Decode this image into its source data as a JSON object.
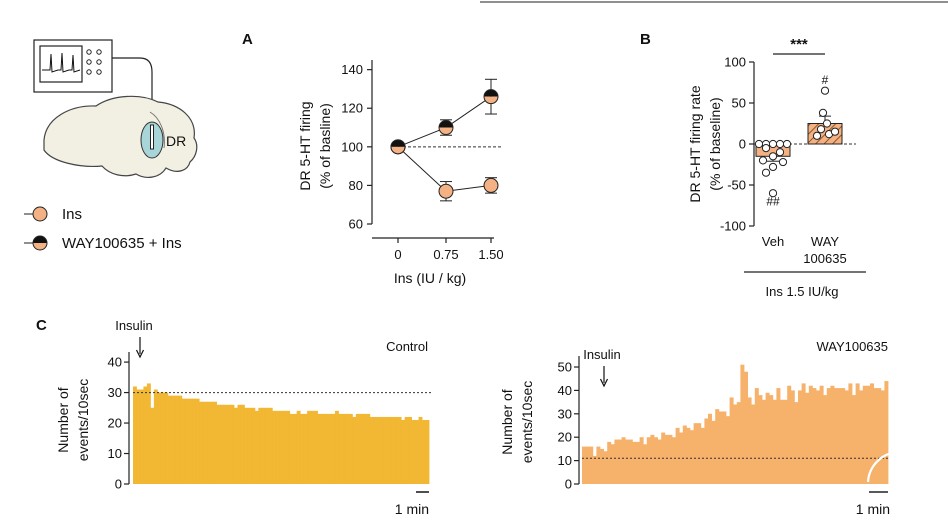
{
  "panels": {
    "a": "A",
    "b": "B",
    "c": "C"
  },
  "schematic": {
    "region_label": "DR"
  },
  "legend": {
    "ins": "Ins",
    "way": "WAY100635 + Ins"
  },
  "colors": {
    "ins": "#F4B183",
    "way_top": "#111111",
    "way_bottom": "#F4B183",
    "bar_control": "#F2B733",
    "bar_way": "#F6B26B"
  },
  "chart_a": {
    "type": "line",
    "ylabel_line1": "DR 5-HT firing",
    "ylabel_line2": "(% of basline)",
    "xlabel": "Ins (IU / kg)",
    "x_ticks": [
      "0",
      "0.75",
      "1.50"
    ],
    "y_ticks": [
      "60",
      "80",
      "100",
      "120",
      "140"
    ],
    "ylim": [
      60,
      145
    ],
    "reference_line": 100,
    "series": [
      {
        "name": "Ins",
        "values": [
          100,
          77,
          80
        ],
        "errors": [
          0,
          5,
          4
        ]
      },
      {
        "name": "WAY100635 + Ins",
        "values": [
          100,
          110,
          126
        ],
        "errors": [
          0,
          4,
          9
        ]
      }
    ]
  },
  "chart_b": {
    "type": "bar",
    "ylabel_line1": "DR 5-HT firing rate",
    "ylabel_line2": "(% of baseline)",
    "categories": [
      "Veh",
      "WAY"
    ],
    "category_line2": [
      "",
      "100635"
    ],
    "group_label": "Ins 1.5 IU/kg",
    "y_ticks": [
      "-100",
      "-50",
      "0",
      "50",
      "100"
    ],
    "ylim": [
      -100,
      100
    ],
    "values": [
      -15,
      25
    ],
    "errors": [
      6,
      9
    ],
    "points": [
      [
        0,
        0,
        0,
        0,
        0,
        -5,
        -10,
        -15,
        -20,
        -22,
        -28,
        -35,
        -60
      ],
      [
        10,
        12,
        15,
        18,
        25,
        38,
        65
      ]
    ],
    "significance": "***",
    "annotations": [
      "##",
      "#"
    ]
  },
  "chart_c": [
    {
      "type": "bar",
      "label": "Control",
      "ylabel_line1": "Number of",
      "ylabel_line2": "events/10sec",
      "y_ticks": [
        "0",
        "10",
        "20",
        "30",
        "40"
      ],
      "ylim": [
        0,
        42
      ],
      "baseline": 30,
      "arrow_label": "Insulin",
      "scale_label": "1 min",
      "values": [
        32,
        31,
        31,
        32,
        33,
        25,
        31,
        30,
        30,
        30,
        29,
        29,
        29,
        29,
        28,
        28,
        28,
        28,
        28,
        27,
        27,
        27,
        27,
        27,
        26,
        26,
        26,
        26,
        26,
        25,
        26,
        26,
        25,
        25,
        25,
        24,
        25,
        25,
        25,
        25,
        24,
        24,
        24,
        24,
        24,
        23,
        23,
        24,
        23,
        23,
        24,
        24,
        24,
        23,
        23,
        23,
        23,
        23,
        24,
        23,
        23,
        23,
        23,
        22,
        23,
        23,
        23,
        23,
        22,
        22,
        22,
        22,
        22,
        22,
        22,
        22,
        22,
        21,
        22,
        22,
        21,
        21,
        22,
        21,
        21
      ]
    },
    {
      "type": "bar",
      "label": "WAY100635",
      "ylabel_line1": "Number of",
      "ylabel_line2": "events/10sec",
      "y_ticks": [
        "0",
        "10",
        "20",
        "30",
        "40",
        "50"
      ],
      "ylim": [
        0,
        53
      ],
      "baseline": 11,
      "arrow_label": "Insulin",
      "scale_label": "1 min",
      "values": [
        16,
        16,
        16,
        12,
        16,
        15,
        14,
        18,
        17,
        19,
        19,
        20,
        19,
        19,
        18,
        18,
        20,
        17,
        20,
        21,
        20,
        19,
        22,
        21,
        21,
        20,
        24,
        22,
        25,
        24,
        23,
        26,
        26,
        24,
        28,
        30,
        27,
        32,
        31,
        31,
        29,
        37,
        34,
        35,
        51,
        48,
        37,
        34,
        41,
        38,
        36,
        39,
        38,
        36,
        41,
        36,
        36,
        42,
        40,
        35,
        40,
        43,
        39,
        42,
        41,
        40,
        42,
        38,
        41,
        42,
        41,
        41,
        41,
        40,
        43,
        38,
        43,
        40,
        42,
        42,
        43,
        41,
        41,
        40,
        44
      ]
    }
  ]
}
